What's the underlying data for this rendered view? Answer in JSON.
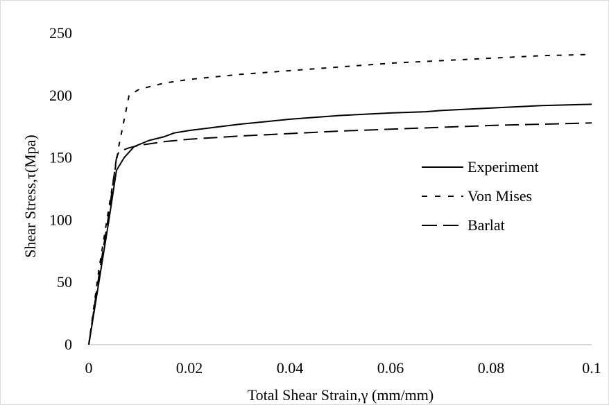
{
  "chart_data": {
    "type": "line",
    "title": "",
    "xlabel": "Total Shear Strain,γ (mm/mm)",
    "ylabel": "Shear Stress,τ(Mpa)",
    "xlim": [
      0,
      0.1
    ],
    "ylim": [
      0,
      250
    ],
    "x_ticks": [
      0,
      0.02,
      0.04,
      0.06,
      0.08,
      0.1
    ],
    "x_tick_labels": [
      "0",
      "0.02",
      "0.04",
      "0.06",
      "0.08",
      "0.1"
    ],
    "y_ticks": [
      0,
      50,
      100,
      150,
      200,
      250
    ],
    "y_tick_labels": [
      "0",
      "50",
      "100",
      "150",
      "200",
      "250"
    ],
    "grid": false,
    "legend_position": "right",
    "series": [
      {
        "name": "Experiment",
        "style": "solid",
        "color": "#000000",
        "points": [
          [
            0,
            0
          ],
          [
            0.002,
            50
          ],
          [
            0.004,
            100
          ],
          [
            0.0055,
            140
          ],
          [
            0.007,
            150
          ],
          [
            0.009,
            159
          ],
          [
            0.012,
            164
          ],
          [
            0.015,
            167
          ],
          [
            0.017,
            170
          ],
          [
            0.02,
            172
          ],
          [
            0.03,
            177
          ],
          [
            0.04,
            181
          ],
          [
            0.05,
            184
          ],
          [
            0.06,
            186
          ],
          [
            0.067,
            187
          ],
          [
            0.07,
            188
          ],
          [
            0.08,
            190
          ],
          [
            0.09,
            192
          ],
          [
            0.1,
            193
          ]
        ]
      },
      {
        "name": "Von Mises",
        "style": "dotted-dash",
        "color": "#000000",
        "points": [
          [
            0,
            0
          ],
          [
            0.002,
            60
          ],
          [
            0.004,
            110
          ],
          [
            0.006,
            160
          ],
          [
            0.007,
            180
          ],
          [
            0.008,
            200
          ],
          [
            0.01,
            205
          ],
          [
            0.015,
            210
          ],
          [
            0.02,
            213
          ],
          [
            0.03,
            217
          ],
          [
            0.04,
            220
          ],
          [
            0.05,
            223
          ],
          [
            0.06,
            226
          ],
          [
            0.07,
            228
          ],
          [
            0.08,
            230
          ],
          [
            0.09,
            232
          ],
          [
            0.1,
            233
          ]
        ]
      },
      {
        "name": "Barlat",
        "style": "long-dash",
        "color": "#000000",
        "points": [
          [
            0,
            0
          ],
          [
            0.002,
            55
          ],
          [
            0.004,
            105
          ],
          [
            0.0055,
            150
          ],
          [
            0.006,
            155
          ],
          [
            0.008,
            158
          ],
          [
            0.01,
            160
          ],
          [
            0.015,
            163
          ],
          [
            0.02,
            165
          ],
          [
            0.03,
            167.5
          ],
          [
            0.04,
            169.5
          ],
          [
            0.05,
            171.5
          ],
          [
            0.06,
            173
          ],
          [
            0.07,
            174.5
          ],
          [
            0.08,
            176
          ],
          [
            0.09,
            177
          ],
          [
            0.1,
            178
          ]
        ]
      }
    ]
  }
}
